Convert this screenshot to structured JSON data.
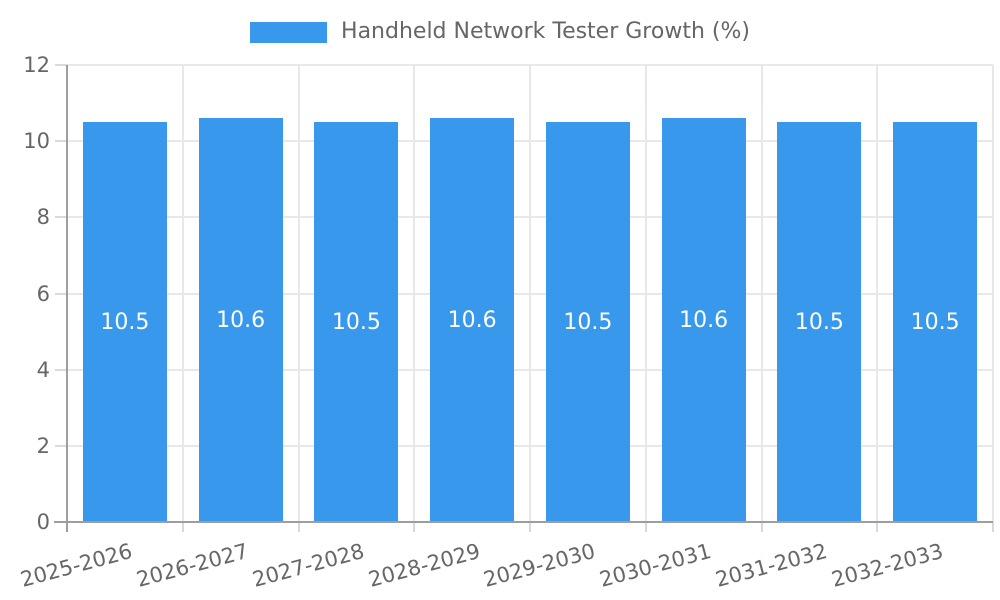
{
  "legend": {
    "label": "Handheld Network Tester Growth (%)"
  },
  "chart_data": {
    "type": "bar",
    "title": "Handheld Network Tester Growth (%)",
    "categories": [
      "2025-2026",
      "2026-2027",
      "2027-2028",
      "2028-2029",
      "2029-2030",
      "2030-2031",
      "2031-2032",
      "2032-2033"
    ],
    "values": [
      10.5,
      10.6,
      10.5,
      10.6,
      10.5,
      10.6,
      10.5,
      10.5
    ],
    "value_labels": [
      "10.5",
      "10.6",
      "10.5",
      "10.6",
      "10.5",
      "10.6",
      "10.5",
      "10.5"
    ],
    "xlabel": "",
    "ylabel": "",
    "ylim": [
      0,
      12
    ],
    "yticks": [
      0,
      2,
      4,
      6,
      8,
      10,
      12
    ],
    "grid": true,
    "legend_position": "top",
    "value_label_position": "center",
    "colors": {
      "bar": "#3898ec",
      "grid": "#e8e8e8",
      "tick": "#d9d9d9",
      "axis": "#9e9e9e",
      "tick_label_text": "#666666",
      "legend_text": "#666666",
      "value_label_text": "#ffffff",
      "background": "#ffffff"
    }
  }
}
